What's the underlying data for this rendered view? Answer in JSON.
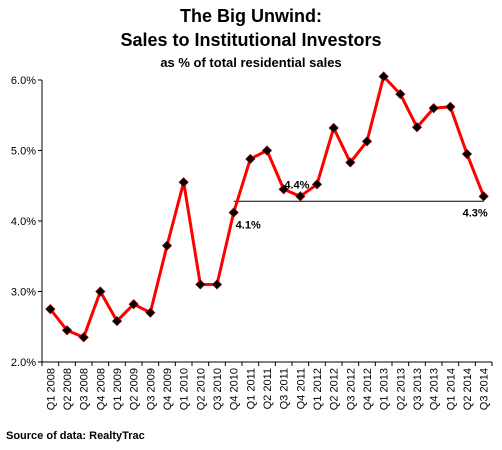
{
  "chart_data": {
    "type": "line",
    "title_lines": [
      "The Big Unwind:",
      "Sales to Institutional Investors"
    ],
    "subtitle": "as % of total residential sales",
    "xlabel": "",
    "ylabel": "",
    "ylim": [
      2.0,
      6.0
    ],
    "y_ticks": [
      "2.0%",
      "3.0%",
      "4.0%",
      "5.0%",
      "6.0%"
    ],
    "y_tick_values": [
      2.0,
      3.0,
      4.0,
      5.0,
      6.0
    ],
    "grid": false,
    "categories": [
      "Q1 2008",
      "Q2 2008",
      "Q3 2008",
      "Q4 2008",
      "Q1 2009",
      "Q2 2009",
      "Q3 2009",
      "Q4 2009",
      "Q1 2010",
      "Q2 2010",
      "Q3 2010",
      "Q4 2010",
      "Q1 2011",
      "Q2 2011",
      "Q3 2011",
      "Q4 2011",
      "Q1 2012",
      "Q2 2012",
      "Q3 2012",
      "Q4 2012",
      "Q1 2013",
      "Q2 2013",
      "Q3 2013",
      "Q4 2013",
      "Q1 2014",
      "Q2 2014",
      "Q3 2014"
    ],
    "series": [
      {
        "values": [
          2.75,
          2.45,
          2.35,
          3.0,
          2.58,
          2.82,
          2.7,
          3.65,
          4.55,
          3.1,
          3.1,
          4.12,
          4.88,
          5.0,
          4.45,
          4.35,
          4.52,
          5.32,
          4.83,
          5.13,
          6.05,
          5.8,
          5.33,
          5.6,
          5.62,
          4.95,
          4.35
        ],
        "color": "#ff0000",
        "marker_color": "#000000"
      }
    ],
    "reference_line": {
      "from_category": "Q4 2010",
      "to_category": "Q3 2014",
      "value": 4.28,
      "color": "#000000"
    },
    "annotations": [
      {
        "text": "4.1%",
        "category": "Q4 2010"
      },
      {
        "text": "4.4%",
        "category": "Q4 2011"
      },
      {
        "text": "4.3%",
        "category": "Q3 2014"
      }
    ]
  },
  "source_note": "Source of data: RealtyTrac"
}
